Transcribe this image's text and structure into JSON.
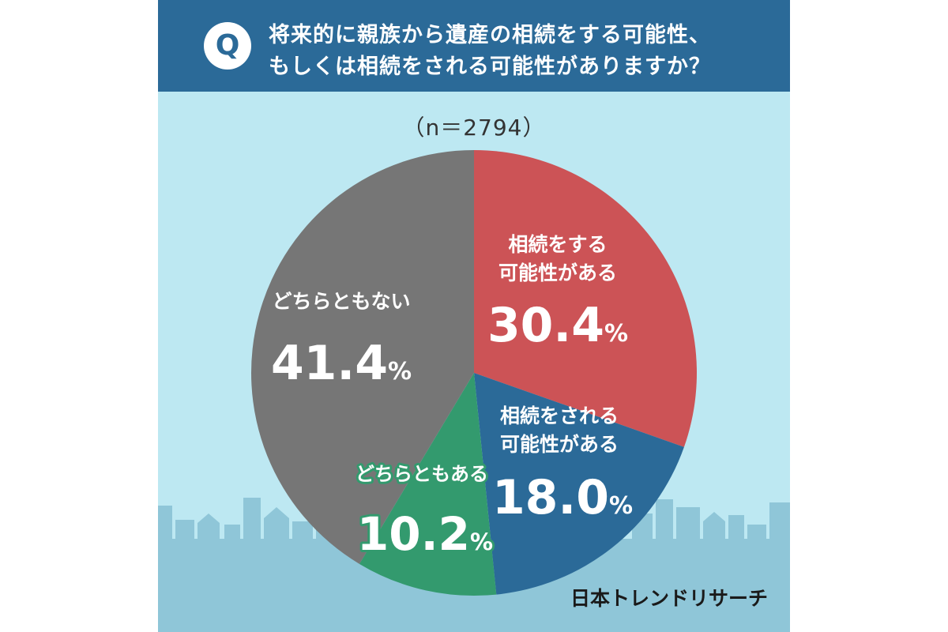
{
  "question": {
    "badge": "Q",
    "line1": "将来的に親族から遺産の相続をする可能性、",
    "line2": "もしくは相続をされる可能性がありますか？"
  },
  "sample_label": "（n＝2794）",
  "brand": "日本トレンドリサーチ",
  "colors": {
    "header": "#2b6a98",
    "background": "#bde8f2",
    "city": "#8fc6d8",
    "slice_inherit": "#cc5356",
    "slice_inherited_from": "#2b6a98",
    "slice_both": "#339a6e",
    "slice_neither": "#767676"
  },
  "chart_data": {
    "type": "pie",
    "title": "将来的に親族から遺産の相続をする可能性、もしくは相続をされる可能性がありますか？",
    "sample_size": 2794,
    "slices": [
      {
        "label_lines": [
          "相続をする",
          "可能性がある"
        ],
        "value": 30.4,
        "value_text": "30.4",
        "color": "#cc5356"
      },
      {
        "label_lines": [
          "相続をされる",
          "可能性がある"
        ],
        "value": 18.0,
        "value_text": "18.0",
        "color": "#2b6a98"
      },
      {
        "label_lines": [
          "どちらともある"
        ],
        "value": 10.2,
        "value_text": "10.2",
        "color": "#339a6e"
      },
      {
        "label_lines": [
          "どちらともない"
        ],
        "value": 41.4,
        "value_text": "41.4",
        "color": "#767676"
      }
    ],
    "unit": "%"
  }
}
